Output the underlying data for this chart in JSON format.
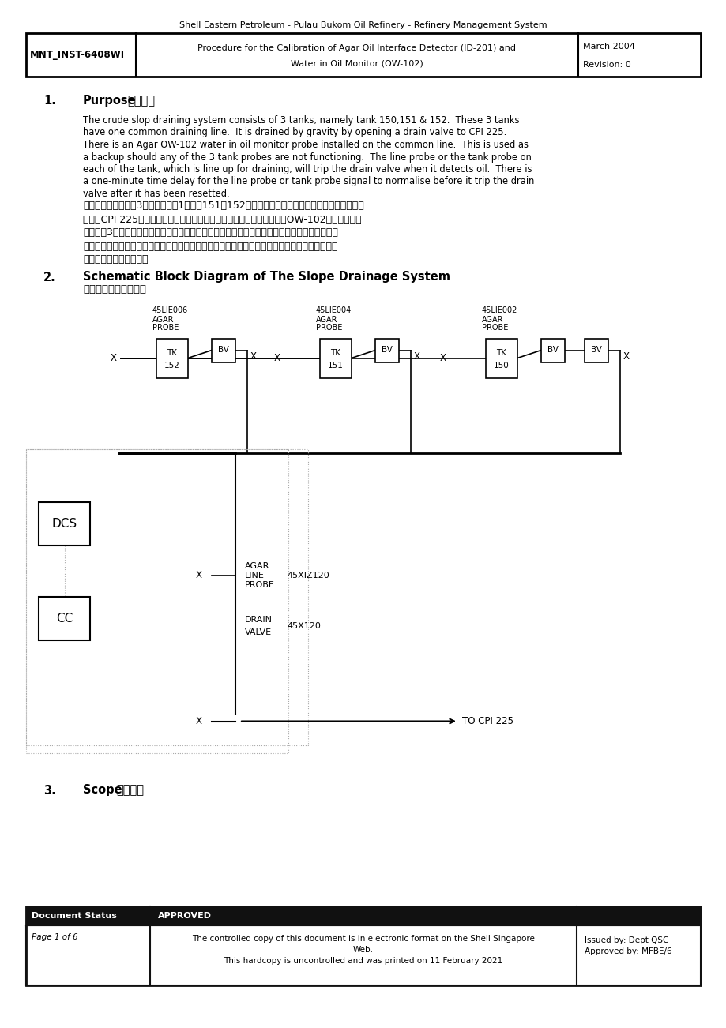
{
  "page_width": 9.2,
  "page_height": 13.02,
  "bg_color": "#ffffff",
  "header_title": "Shell Eastern Petroleum - Pulau Bukom Oil Refinery - Refinery Management System",
  "header_col1": "MNT_INST-6408WI",
  "header_col2_line1": "Procedure for the Calibration of Agar Oil Interface Detector (ID-201) and",
  "header_col2_line2": "Water in Oil Monitor (OW-102)",
  "header_col3_line1": "March 2004",
  "header_col3_line2": "Revision: 0",
  "section1_num": "1.",
  "section1_title": "Purpose（目的）",
  "section1_body_en_lines": [
    "The crude slop draining system consists of 3 tanks, namely tank 150,151 & 152.  These 3 tanks",
    "have one common draining line.  It is drained by gravity by opening a drain valve to CPI 225.",
    "There is an Agar OW-102 water in oil monitor probe installed on the common line.  This is used as",
    "a backup should any of the 3 tank probes are not functioning.  The line probe or the tank probe on",
    "each of the tank, which is line up for draining, will trip the drain valve when it detects oil.  There is",
    "a one-minute time delay for the line probe or tank probe signal to normalise before it trip the drain",
    "valve after it has been resetted."
  ],
  "section1_body_cn_lines": [
    "原油污水排放系统由3个罐组成，兢1５０、151和152罐。这三个水筱有一个共同的排水管。通过打",
    "开通向CPI 225的排水阀在重力作用下排放。公共管线上安装有一个琼脂OW-102油包水监测探",
    "头。如果3个油筒探头中的任何一个不起作用，则将其用作备用。每个油筒上的管路探头或油筒探",
    "头（排油时）将在检测到机油时使排放阀跳闸。管线探头或储罐探头信号在复位后使排水阀跳闸前",
    "正常化有一分钟的延时。"
  ],
  "section2_num": "2.",
  "section2_title_en": "Schematic Block Diagram of The Slope Drainage System",
  "section2_title_cn": "边坡排水系统示意框图",
  "section3_num": "3.",
  "section3_title": "Scope（范围）",
  "footer_col1_row1": "Document Status",
  "footer_col1_row2": "Page 1 of 6",
  "footer_col2_row1": "APPROVED",
  "footer_col2_row2_line1": "The controlled copy of this document is in electronic format on the Shell Singapore",
  "footer_col2_row2_line2": "Web.",
  "footer_col2_row2_line3": "This hardcopy is uncontrolled and was printed on 11 February 2021",
  "footer_col3_row2_line1": "Issued by: Dept QSC",
  "footer_col3_row2_line2": "Approved by: MFBE/6"
}
